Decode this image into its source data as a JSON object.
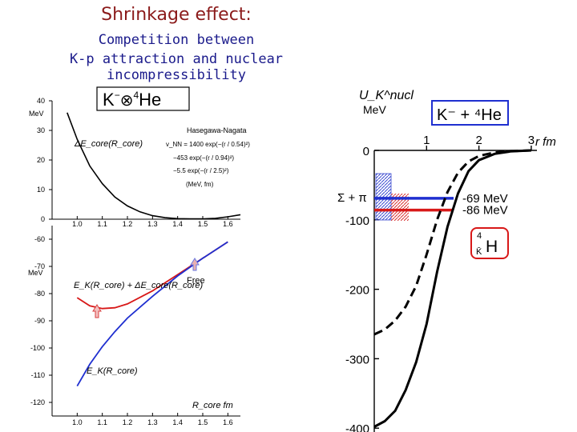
{
  "header": {
    "title": "Shrinkage effect:",
    "subtitle_line1": "Competition between",
    "subtitle_line2": "K-p attraction and nuclear incompressibility"
  },
  "colors": {
    "blue": "#1f2fd0",
    "red": "#d81818",
    "dark_red": "#b01010",
    "black": "#000000"
  },
  "chart_data": [
    {
      "type": "line",
      "panel": "left-top",
      "box_label_left": "K",
      "box_label_sup": "−",
      "box_label_op": "⊗",
      "box_label_sup2": "4",
      "box_label_right": "He",
      "ylabel": "MeV",
      "ylim": [
        0,
        40
      ],
      "yticks": [
        "0",
        "10",
        "20",
        "30",
        "40"
      ],
      "xlim": [
        0.9,
        1.65
      ],
      "xticks": [
        "1.0",
        "1.1",
        "1.2",
        "1.3",
        "1.4",
        "1.5",
        "1.6"
      ],
      "curve_label": "ΔE_core(R_core)",
      "annotations": {
        "author": "Hasegawa-Nagata",
        "vnn": "v_NN = 1400 exp(−(r / 0.54)²)",
        "line2": "−453 exp(−(r / 0.94)²)",
        "line3": "−5.5 exp(−(r / 2.5)²)",
        "units": "(MeV, fm)"
      },
      "series": [
        {
          "x": [
            0.96,
            1.0,
            1.05,
            1.1,
            1.15,
            1.2,
            1.25,
            1.3,
            1.35,
            1.4,
            1.45,
            1.5,
            1.55,
            1.6,
            1.65
          ],
          "y": [
            36,
            27,
            18,
            12,
            7.5,
            4.5,
            2.5,
            1.2,
            0.5,
            0.2,
            0.1,
            0.1,
            0.3,
            0.8,
            1.5
          ]
        }
      ]
    },
    {
      "type": "line",
      "panel": "left-bottom",
      "ylabel": "MeV",
      "xlabel": "R_core fm",
      "ylim": [
        -125,
        -55
      ],
      "yticks": [
        "-60",
        "-70",
        "-80",
        "-90",
        "-100",
        "-110",
        "-120"
      ],
      "xlim": [
        0.9,
        1.65
      ],
      "xticks": [
        "1.0",
        "1.1",
        "1.2",
        "1.3",
        "1.4",
        "1.5",
        "1.6"
      ],
      "free_label": "Free",
      "series": [
        {
          "name": "E_K(R_core) + ΔE_core(R_core)",
          "x": [
            1.0,
            1.05,
            1.1,
            1.15,
            1.2,
            1.3,
            1.4,
            1.5,
            1.6
          ],
          "y": [
            -81.5,
            -84.5,
            -85.5,
            -85.2,
            -83.8,
            -79,
            -73,
            -67,
            -61
          ]
        },
        {
          "name": "E_K(R_core)",
          "x": [
            1.0,
            1.05,
            1.1,
            1.15,
            1.2,
            1.3,
            1.4,
            1.5,
            1.6
          ],
          "y": [
            -114,
            -106,
            -99.5,
            -94,
            -89,
            -81,
            -73.5,
            -67,
            -61
          ]
        }
      ]
    },
    {
      "type": "line",
      "panel": "right",
      "ylabel": "U_K^nucl",
      "ylabel_unit": "MeV",
      "xlabel": "r fm",
      "box_label": "K⁻ + ⁴He",
      "xlim": [
        0,
        3.2
      ],
      "xticks": [
        "1",
        "2",
        "3"
      ],
      "ylim": [
        -400,
        20
      ],
      "yticks": [
        "0",
        "-100",
        "-200",
        "-300",
        "-400"
      ],
      "series": [
        {
          "name": "solid",
          "x": [
            0.0,
            0.2,
            0.4,
            0.6,
            0.8,
            1.0,
            1.2,
            1.4,
            1.6,
            1.8,
            2.0,
            2.3,
            2.6,
            3.0
          ],
          "y": [
            -398,
            -390,
            -375,
            -345,
            -305,
            -250,
            -175,
            -110,
            -62,
            -30,
            -14,
            -5,
            -1.5,
            0
          ]
        },
        {
          "name": "dashed",
          "x": [
            0.0,
            0.2,
            0.4,
            0.6,
            0.8,
            1.0,
            1.2,
            1.4,
            1.6,
            1.8,
            2.0,
            2.3,
            2.6,
            3.0
          ],
          "y": [
            -265,
            -258,
            -245,
            -225,
            -195,
            -150,
            -100,
            -60,
            -32,
            -16,
            -8,
            -3,
            -1,
            0
          ]
        }
      ],
      "levels": [
        {
          "name": "-69 MeV",
          "value": -69,
          "color": "#1f2fd0"
        },
        {
          "name": "-86 MeV",
          "value": -86,
          "color": "#d81818"
        }
      ],
      "threshold_label": "Σ + π",
      "hypernucleus": {
        "pre_sup": "4",
        "pre_sub": "K̄",
        "symbol": "H"
      }
    }
  ]
}
